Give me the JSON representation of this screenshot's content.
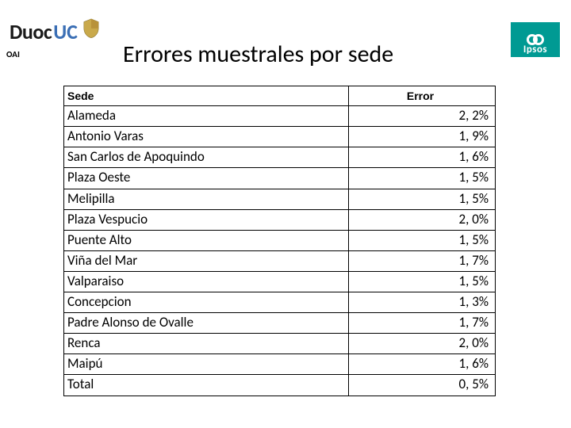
{
  "header": {
    "brand_duoc": "Duoc",
    "brand_uc": "UC",
    "oai": "OAI",
    "ipsos": "Ipsos"
  },
  "title": "Errores muestrales por sede",
  "table": {
    "columns": [
      "Sede",
      "Error"
    ],
    "rows": [
      {
        "sede": "Alameda",
        "error": "2, 2%"
      },
      {
        "sede": "Antonio Varas",
        "error": "1, 9%"
      },
      {
        "sede": "San Carlos de Apoquindo",
        "error": "1, 6%"
      },
      {
        "sede": "Plaza Oeste",
        "error": "1, 5%"
      },
      {
        "sede": "Melipilla",
        "error": "1, 5%"
      },
      {
        "sede": "Plaza Vespucio",
        "error": "2, 0%"
      },
      {
        "sede": "Puente Alto",
        "error": "1, 5%"
      },
      {
        "sede": "Viña del Mar",
        "error": "1, 7%"
      },
      {
        "sede": "Valparaiso",
        "error": "1, 5%"
      },
      {
        "sede": "Concepcion",
        "error": "1, 3%"
      },
      {
        "sede": "Padre Alonso de Ovalle",
        "error": "1, 7%"
      },
      {
        "sede": " Renca",
        "error": "2, 0%"
      },
      {
        "sede": "Maipú",
        "error": "1, 6%"
      },
      {
        "sede": "Total",
        "error": "0, 5%"
      }
    ]
  },
  "style": {
    "duoc_color": "#1a1a1a",
    "uc_color": "#3b6fb5",
    "ipsos_bg": "#009a93",
    "border_color": "#000000",
    "background": "#ffffff",
    "title_fontsize": 30,
    "cell_fontsize": 17,
    "header_fontsize": 14
  }
}
